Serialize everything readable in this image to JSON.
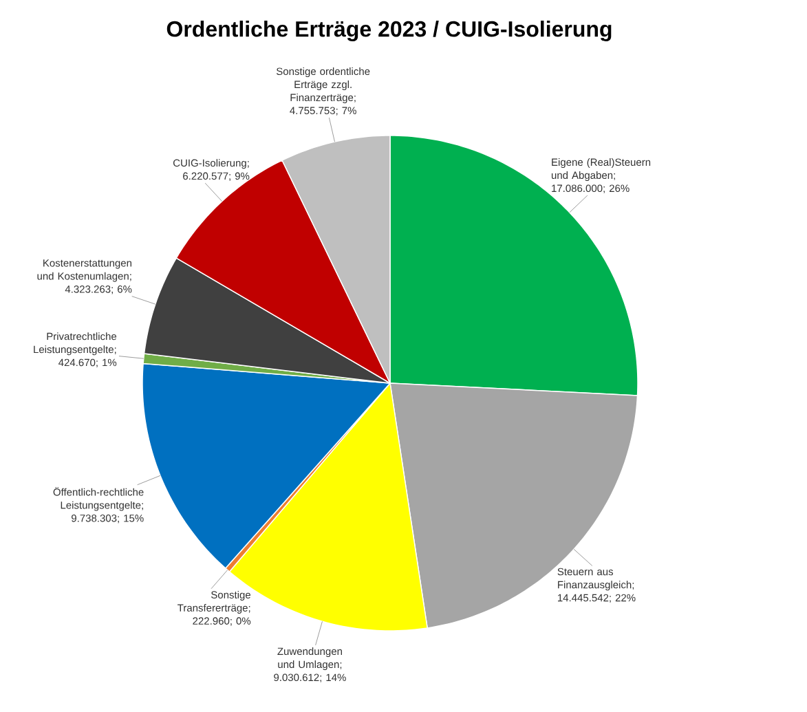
{
  "chart_data": {
    "type": "pie",
    "title": "Ordentliche Erträge 2023 / CUIG-Isolierung",
    "categories": [
      "Eigene (Real)Steuern und Abgaben",
      "Steuern aus Finanzausgleich",
      "Zuwendungen und Umlagen",
      "Sonstige Transfererträge",
      "Öffentlich-rechtliche Leistungsentgelte",
      "Privatrechtliche Leistungsentgelte",
      "Kostenerstattungen und Kostenumlagen",
      "CUIG-Isolierung",
      "Sonstige ordentliche Erträge zzgl. Finanzerträge"
    ],
    "values": [
      17086000,
      14445542,
      9030612,
      222960,
      9738303,
      424670,
      4323263,
      6220577,
      4755753
    ],
    "value_labels": [
      "; 17.086.000; 26%",
      "; 14.445.542; 22%",
      "; 9.030.612; 14%",
      "; 222.960; 0%",
      "; 9.738.303; 15%",
      "; 424.670; 1%",
      "; 4.323.263; 6%",
      "; 6.220.577; 9%",
      "; 4.755.753; 7%"
    ],
    "colors": [
      "#00b050",
      "#a5a5a5",
      "#ffff00",
      "#ed7d31",
      "#0070c0",
      "#70ad47",
      "#404040",
      "#c00000",
      "#bfbfbf"
    ]
  }
}
